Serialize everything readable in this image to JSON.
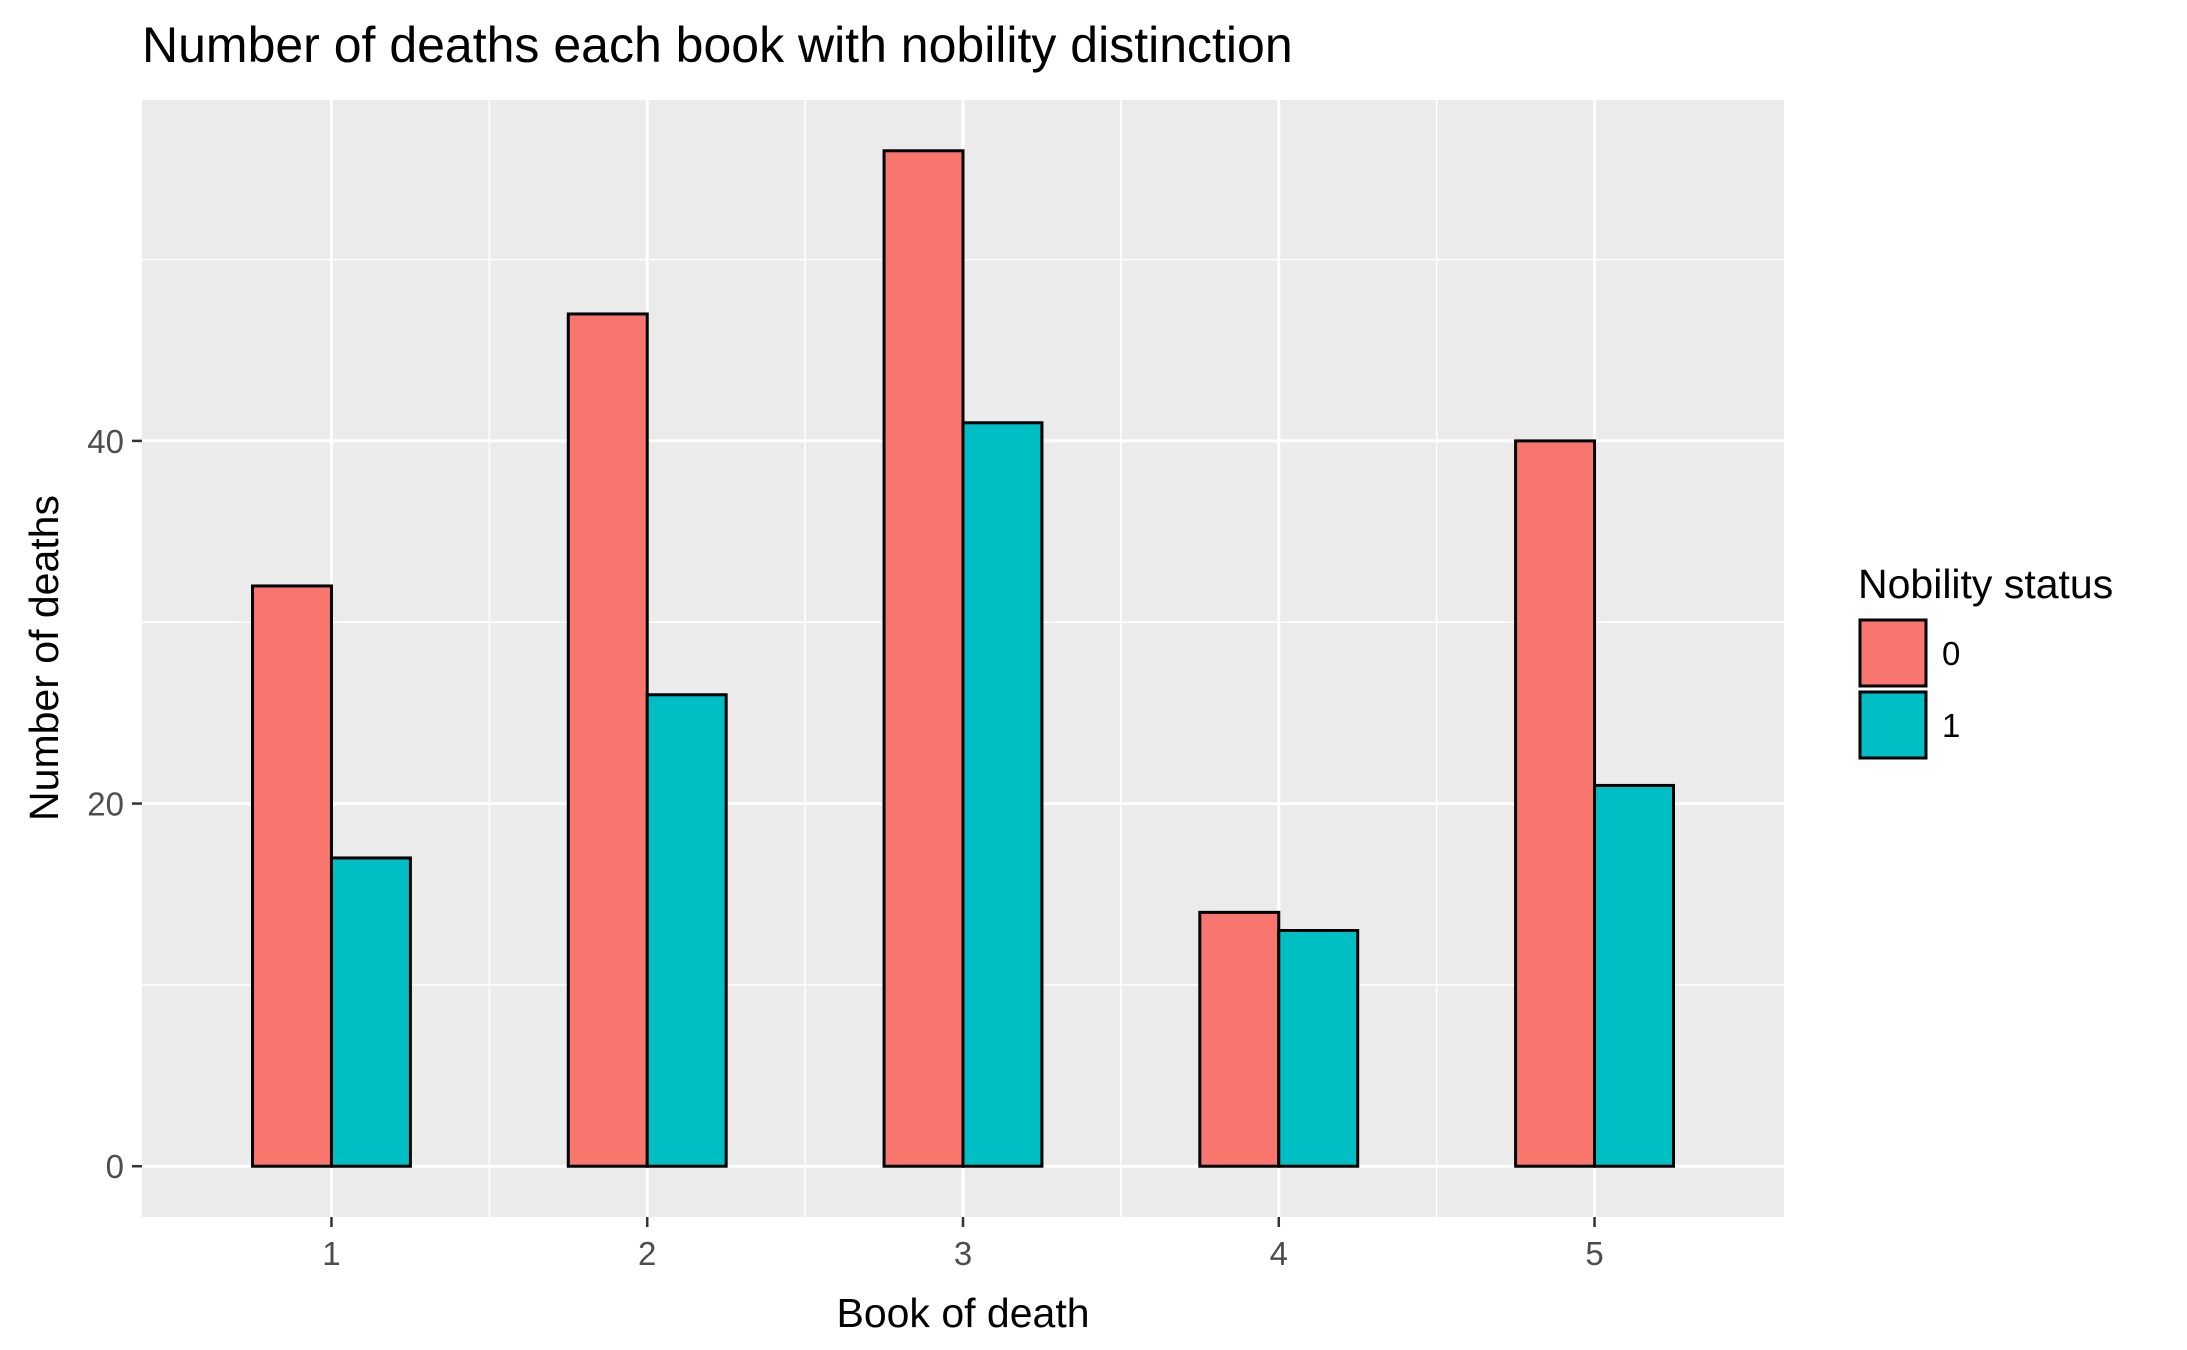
{
  "chart_data": {
    "type": "bar",
    "title": "Number of deaths each book with nobility distinction",
    "xlabel": "Book of death",
    "ylabel": "Number of deaths",
    "categories": [
      "1",
      "2",
      "3",
      "4",
      "5"
    ],
    "series": [
      {
        "name": "0",
        "color": "#F8766D",
        "values": [
          32,
          47,
          56,
          14,
          40
        ]
      },
      {
        "name": "1",
        "color": "#00BFC4",
        "values": [
          17,
          26,
          41,
          13,
          21
        ]
      }
    ],
    "y_ticks": [
      0,
      20,
      40
    ],
    "ylim": [
      -2.8,
      58.8
    ],
    "grid": true,
    "panel_background": "#EBEBEB",
    "legend": {
      "title": "Nobility status",
      "position": "right"
    }
  }
}
